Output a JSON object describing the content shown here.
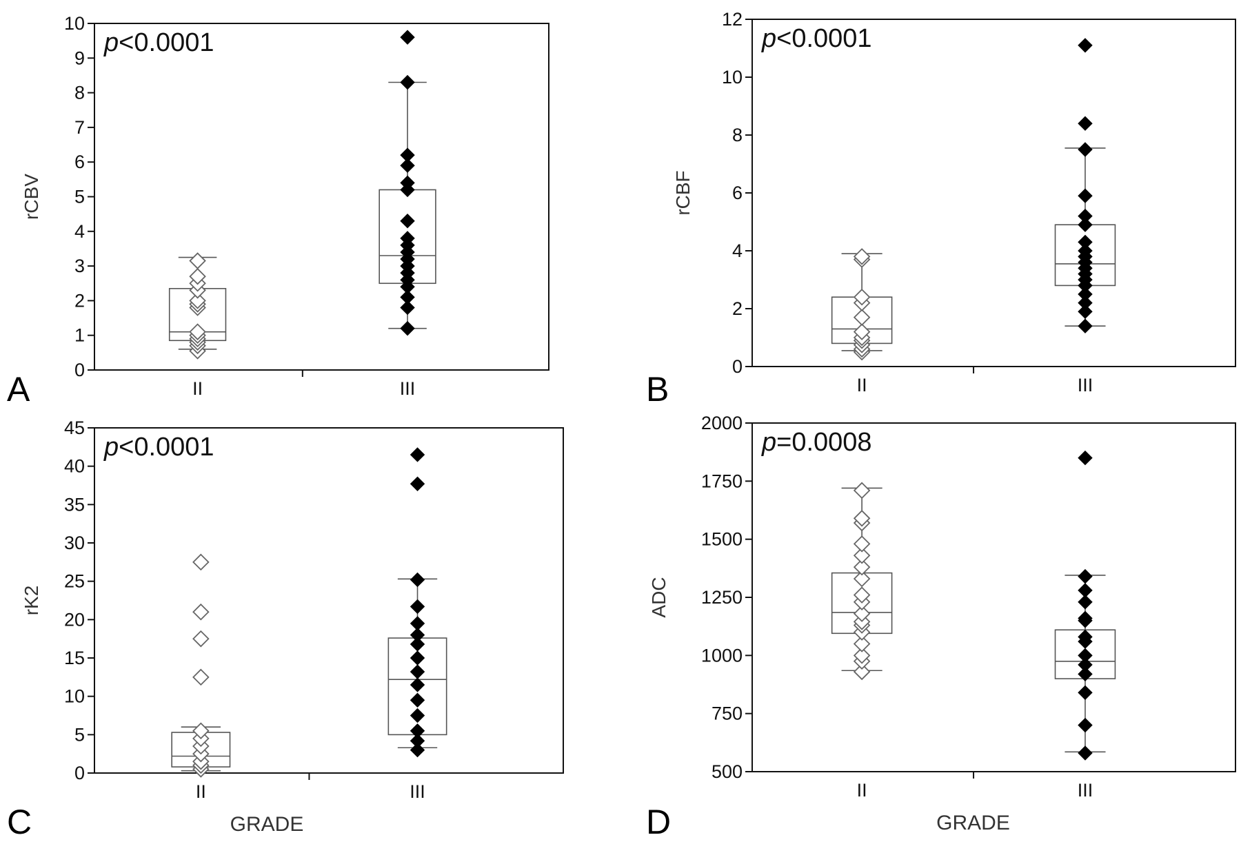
{
  "figure": {
    "shared_xlabel": "GRADE",
    "colors": {
      "axis": "#111111",
      "box": "#555555",
      "grade_II_marker": "hollow",
      "grade_III_marker": "#000000"
    }
  },
  "chart_data": [
    {
      "type": "box",
      "panel_label": "A",
      "ylabel": "rCBV",
      "annotation_italic": "p",
      "annotation_rest": "<0.0001",
      "categories": [
        "II",
        "III"
      ],
      "ylim": [
        0,
        10
      ],
      "yticks": [
        0,
        1,
        2,
        3,
        4,
        5,
        6,
        7,
        8,
        9,
        10
      ],
      "ytick_labels": [
        "0",
        "1",
        "2",
        "3",
        "4",
        "5",
        "6",
        "7",
        "8",
        "9",
        "10"
      ],
      "show_xlabel": false,
      "series": [
        {
          "category": "II",
          "marker": "hollow-diamond",
          "whisker_low": 0.6,
          "q1": 0.85,
          "median": 1.1,
          "q3": 2.35,
          "whisker_high": 3.25,
          "points": [
            0.55,
            0.7,
            0.8,
            0.9,
            1.0,
            1.1,
            1.8,
            1.9,
            2.0,
            2.3,
            2.5,
            2.7,
            3.15
          ]
        },
        {
          "category": "III",
          "marker": "filled-diamond",
          "whisker_low": 1.2,
          "q1": 2.5,
          "median": 3.3,
          "q3": 5.2,
          "whisker_high": 8.3,
          "points": [
            1.2,
            1.8,
            2.1,
            2.4,
            2.6,
            2.8,
            3.0,
            3.2,
            3.4,
            3.6,
            3.8,
            4.3,
            5.2,
            5.4,
            5.9,
            6.2,
            8.3,
            9.6
          ]
        }
      ]
    },
    {
      "type": "box",
      "panel_label": "B",
      "ylabel": "rCBF",
      "annotation_italic": "p",
      "annotation_rest": "<0.0001",
      "categories": [
        "II",
        "III"
      ],
      "ylim": [
        0,
        12
      ],
      "yticks": [
        0,
        2,
        4,
        6,
        8,
        10,
        12
      ],
      "ytick_labels": [
        "0",
        "2",
        "4",
        "6",
        "8",
        "10",
        "12"
      ],
      "show_xlabel": false,
      "series": [
        {
          "category": "II",
          "marker": "hollow-diamond",
          "whisker_low": 0.55,
          "q1": 0.8,
          "median": 1.3,
          "q3": 2.4,
          "whisker_high": 3.9,
          "points": [
            0.5,
            0.6,
            0.75,
            0.9,
            1.0,
            1.2,
            1.7,
            2.2,
            2.4,
            3.7,
            3.8
          ]
        },
        {
          "category": "III",
          "marker": "filled-diamond",
          "whisker_low": 1.4,
          "q1": 2.8,
          "median": 3.55,
          "q3": 4.9,
          "whisker_high": 7.55,
          "points": [
            1.4,
            1.9,
            2.2,
            2.5,
            2.8,
            3.0,
            3.2,
            3.4,
            3.6,
            3.8,
            4.0,
            4.3,
            4.9,
            5.2,
            5.9,
            7.5,
            8.4,
            11.1
          ]
        }
      ]
    },
    {
      "type": "box",
      "panel_label": "C",
      "ylabel": "rK2",
      "annotation_italic": "p",
      "annotation_rest": "<0.0001",
      "categories": [
        "II",
        "III"
      ],
      "ylim": [
        0,
        45
      ],
      "yticks": [
        0,
        5,
        10,
        15,
        20,
        25,
        30,
        35,
        40,
        45
      ],
      "ytick_labels": [
        "0",
        "5",
        "10",
        "15",
        "20",
        "25",
        "30",
        "35",
        "40",
        "45"
      ],
      "show_xlabel": true,
      "series": [
        {
          "category": "II",
          "marker": "hollow-diamond",
          "whisker_low": 0.3,
          "q1": 0.8,
          "median": 2.2,
          "q3": 5.3,
          "whisker_high": 6.0,
          "points": [
            0.5,
            1.0,
            1.5,
            2.5,
            3.5,
            4.5,
            5.5,
            12.5,
            17.5,
            21.0,
            27.5
          ]
        },
        {
          "category": "III",
          "marker": "filled-diamond",
          "whisker_low": 3.3,
          "q1": 5.0,
          "median": 12.2,
          "q3": 17.6,
          "whisker_high": 25.3,
          "points": [
            3.0,
            4.2,
            5.5,
            7.5,
            9.5,
            11.5,
            13.2,
            15.0,
            16.8,
            18.0,
            19.5,
            21.7,
            25.2,
            37.7,
            41.5
          ]
        }
      ]
    },
    {
      "type": "box",
      "panel_label": "D",
      "ylabel": "ADC",
      "annotation_italic": "p",
      "annotation_rest": "=0.0008",
      "categories": [
        "II",
        "III"
      ],
      "ylim": [
        500,
        2000
      ],
      "yticks": [
        500,
        750,
        1000,
        1250,
        1500,
        1750,
        2000
      ],
      "ytick_labels": [
        "500",
        "750",
        "1000",
        "1250",
        "1500",
        "1750",
        "2000"
      ],
      "show_xlabel": true,
      "series": [
        {
          "category": "II",
          "marker": "hollow-diamond",
          "whisker_low": 935,
          "q1": 1095,
          "median": 1185,
          "q3": 1355,
          "whisker_high": 1720,
          "points": [
            930,
            975,
            1000,
            1050,
            1100,
            1130,
            1145,
            1180,
            1230,
            1260,
            1330,
            1380,
            1430,
            1480,
            1570,
            1590,
            1710
          ]
        },
        {
          "category": "III",
          "marker": "filled-diamond",
          "whisker_low": 585,
          "q1": 900,
          "median": 975,
          "q3": 1110,
          "whisker_high": 1345,
          "points": [
            580,
            700,
            840,
            920,
            960,
            1000,
            1060,
            1080,
            1150,
            1160,
            1230,
            1280,
            1340,
            1850
          ]
        }
      ]
    }
  ]
}
